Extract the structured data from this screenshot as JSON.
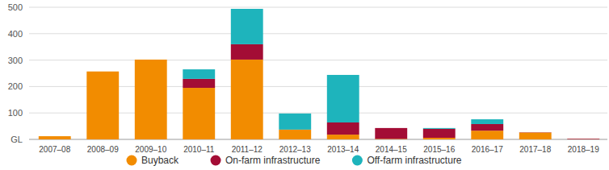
{
  "chart_data": {
    "type": "bar",
    "stacked": true,
    "grid": true,
    "legend": "bottom",
    "categories": [
      "2007–08",
      "2008–09",
      "2009–10",
      "2010–11",
      "2011–12",
      "2012–13",
      "2013–14",
      "2014–15",
      "2015–16",
      "2016–17",
      "2017–18",
      "2018–19"
    ],
    "series": [
      {
        "name": "Buyback",
        "color": "#f28c00",
        "values": [
          12,
          257,
          302,
          195,
          302,
          37,
          18,
          2,
          6,
          33,
          26,
          1
        ]
      },
      {
        "name": "On-farm infrastructure",
        "color": "#a30d35",
        "values": [
          0,
          0,
          0,
          34,
          58,
          0,
          46,
          41,
          34,
          25,
          1,
          2
        ]
      },
      {
        "name": "Off-farm infrastructure",
        "color": "#1eb4bc",
        "values": [
          0,
          0,
          0,
          36,
          134,
          61,
          180,
          0,
          3,
          18,
          0,
          0
        ]
      }
    ],
    "ylim": [
      0,
      500
    ],
    "yticks": [
      {
        "value": 0,
        "label": "GL"
      },
      100,
      200,
      300,
      400,
      500
    ]
  }
}
